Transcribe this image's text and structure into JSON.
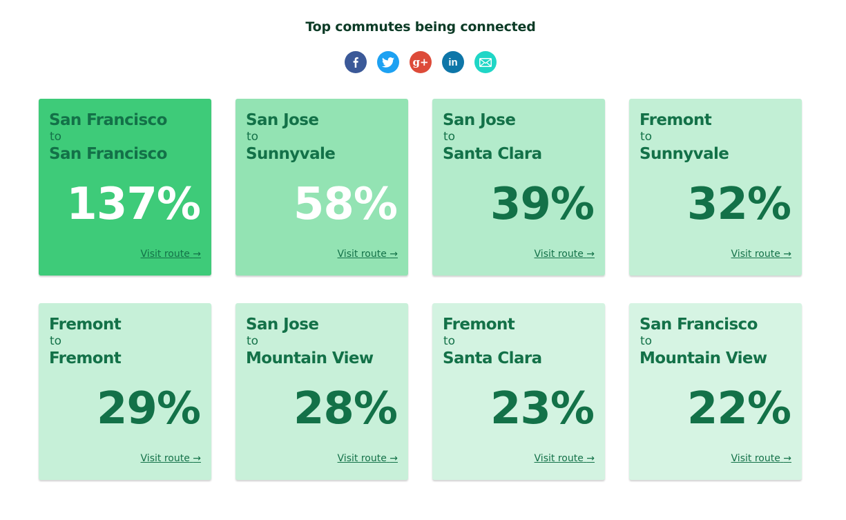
{
  "title": "Top commutes being connected",
  "share": [
    {
      "name": "facebook-icon",
      "color": "#3b5998",
      "glyph": "f"
    },
    {
      "name": "twitter-icon",
      "color": "#1da1f2"
    },
    {
      "name": "google-plus-icon",
      "color": "#dd4b39",
      "glyph": "g+"
    },
    {
      "name": "linkedin-icon",
      "color": "#0e76a8",
      "glyph": "in"
    },
    {
      "name": "email-icon",
      "color": "#1fd6c6"
    }
  ],
  "route_separator": "to",
  "visit_label": "Visit route",
  "visit_arrow": "→",
  "routes": [
    {
      "from": "San Francisco",
      "to": "San Francisco",
      "percent": "137%",
      "bg": "#3ecb79",
      "light_text": true
    },
    {
      "from": "San Jose",
      "to": "Sunnyvale",
      "percent": "58%",
      "bg": "#93e3b3",
      "light_text": true
    },
    {
      "from": "San Jose",
      "to": "Santa Clara",
      "percent": "39%",
      "bg": "#b3ebcb",
      "light_text": false
    },
    {
      "from": "Fremont",
      "to": "Sunnyvale",
      "percent": "32%",
      "bg": "#c2efd5",
      "light_text": false
    },
    {
      "from": "Fremont",
      "to": "Fremont",
      "percent": "29%",
      "bg": "#c6f0d8",
      "light_text": false
    },
    {
      "from": "San Jose",
      "to": "Mountain View",
      "percent": "28%",
      "bg": "#c8f0d9",
      "light_text": false
    },
    {
      "from": "Fremont",
      "to": "Santa Clara",
      "percent": "23%",
      "bg": "#d3f3e1",
      "light_text": false
    },
    {
      "from": "San Francisco",
      "to": "Mountain View",
      "percent": "22%",
      "bg": "#d6f4e3",
      "light_text": false
    }
  ]
}
